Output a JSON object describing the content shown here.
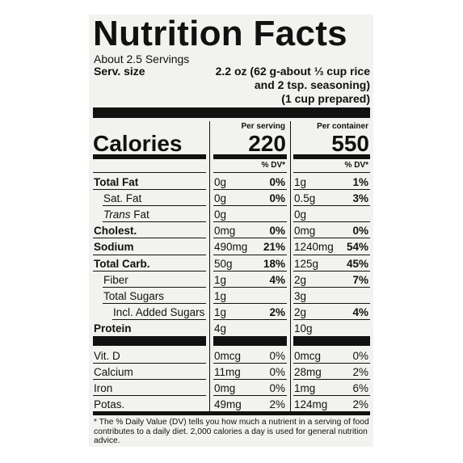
{
  "title": "Nutrition Facts",
  "servings": "About 2.5 Servings",
  "serving_size_label": "Serv. size",
  "serving_size": [
    "2.2 oz (62 g-about ⅓ cup rice",
    "and 2 tsp. seasoning)",
    "(1 cup prepared)"
  ],
  "calories_label": "Calories",
  "columns": [
    {
      "header": "Per serving",
      "calories": 220,
      "dv_header": "% DV*"
    },
    {
      "header": "Per container",
      "calories": 550,
      "dv_header": "% DV*"
    }
  ],
  "nutrients": [
    {
      "name": "Total Fat",
      "bold": true,
      "indent": 0,
      "values": [
        [
          "0g",
          "0%"
        ],
        [
          "1g",
          "1%"
        ]
      ]
    },
    {
      "name": "Sat. Fat",
      "bold": false,
      "indent": 1,
      "values": [
        [
          "0g",
          "0%"
        ],
        [
          "0.5g",
          "3%"
        ]
      ]
    },
    {
      "italic_prefix": "Trans",
      "name": "Fat",
      "bold": false,
      "indent": 1,
      "values": [
        [
          "0g"
        ],
        [
          "0g"
        ]
      ]
    },
    {
      "name": "Cholest.",
      "bold": true,
      "indent": 0,
      "values": [
        [
          "0mg",
          "0%"
        ],
        [
          "0mg",
          "0%"
        ]
      ]
    },
    {
      "name": "Sodium",
      "bold": true,
      "indent": 0,
      "values": [
        [
          "490mg",
          "21%"
        ],
        [
          "1240mg",
          "54%"
        ]
      ]
    },
    {
      "name": "Total Carb.",
      "bold": true,
      "indent": 0,
      "values": [
        [
          "50g",
          "18%"
        ],
        [
          "125g",
          "45%"
        ]
      ]
    },
    {
      "name": "Fiber",
      "bold": false,
      "indent": 1,
      "values": [
        [
          "1g",
          "4%"
        ],
        [
          "2g",
          "7%"
        ]
      ]
    },
    {
      "name": "Total Sugars",
      "bold": false,
      "indent": 1,
      "values": [
        [
          "1g"
        ],
        [
          "3g"
        ]
      ]
    },
    {
      "name": "Incl. Added Sugars",
      "bold": false,
      "indent": 2,
      "values": [
        [
          "1g",
          "2%"
        ],
        [
          "2g",
          "4%"
        ]
      ]
    },
    {
      "name": "Protein",
      "bold": true,
      "indent": 0,
      "values": [
        [
          "4g"
        ],
        [
          "10g"
        ]
      ]
    }
  ],
  "vitamins": [
    {
      "name": "Vit. D",
      "values": [
        [
          "0mcg",
          "0%"
        ],
        [
          "0mcg",
          "0%"
        ]
      ]
    },
    {
      "name": "Calcium",
      "values": [
        [
          "11mg",
          "0%"
        ],
        [
          "28mg",
          "2%"
        ]
      ]
    },
    {
      "name": "Iron",
      "values": [
        [
          "0mg",
          "0%"
        ],
        [
          "1mg",
          "6%"
        ]
      ]
    },
    {
      "name": "Potas.",
      "values": [
        [
          "49mg",
          "2%"
        ],
        [
          "124mg",
          "2%"
        ]
      ]
    }
  ],
  "footnote": "* The % Daily Value (DV) tells you how much a nutrient in a serving of food contributes to a daily diet. 2,000 calories a day is used for general nutrition advice."
}
